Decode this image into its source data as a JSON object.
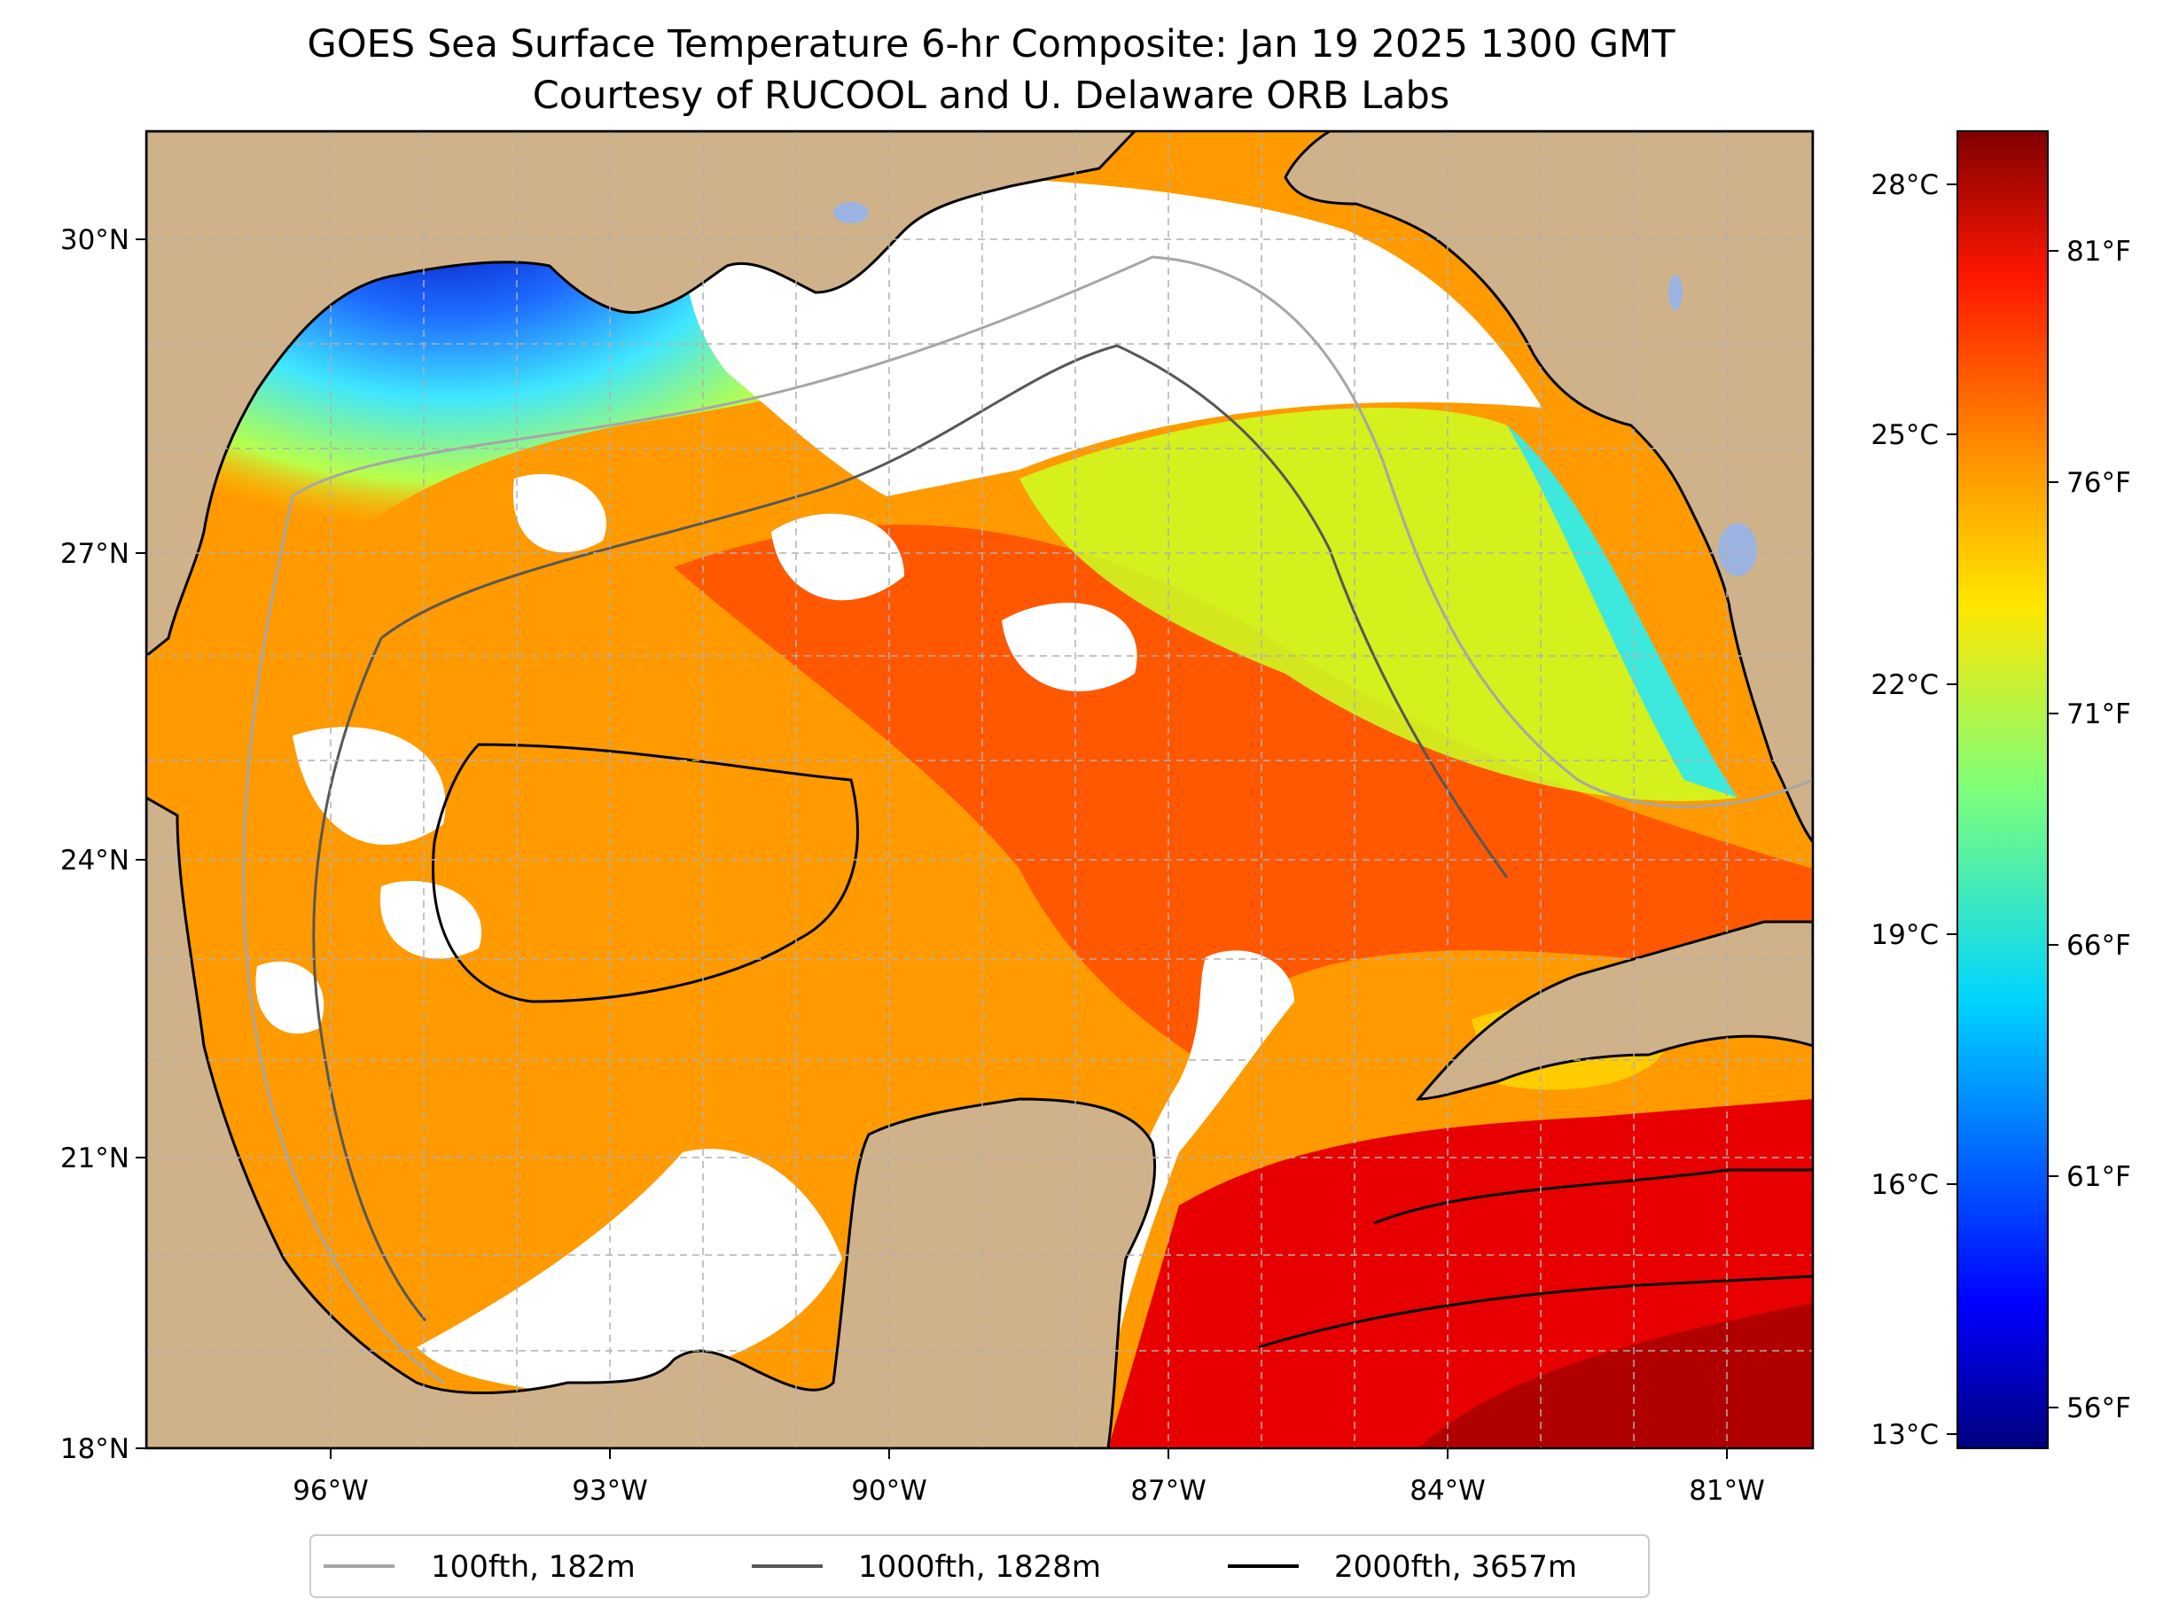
{
  "title": {
    "line1": "GOES Sea Surface Temperature 6-hr Composite: Jan 19 2025 1300 GMT",
    "line2": "Courtesy of RUCOOL and U. Delaware ORB Labs"
  },
  "map": {
    "region": "Gulf of Mexico",
    "lon_range": [
      -98.0,
      -80.0
    ],
    "lat_range": [
      18.0,
      31.0
    ],
    "x_ticks": [
      "96°W",
      "93°W",
      "90°W",
      "87°W",
      "84°W",
      "81°W"
    ],
    "y_ticks": [
      "30°N",
      "27°N",
      "24°N",
      "21°N",
      "18°N"
    ],
    "gridlines": true,
    "colors": {
      "land": "#d0b28a",
      "no_data": "#ffffff",
      "lakes": "#9bb3e0",
      "coastline": "#000000"
    }
  },
  "colorbar": {
    "colormap": "jet",
    "celsius_ticks": [
      "28°C",
      "25°C",
      "22°C",
      "19°C",
      "16°C",
      "13°C"
    ],
    "fahrenheit_ticks": [
      "81°F",
      "76°F",
      "71°F",
      "66°F",
      "61°F",
      "56°F"
    ],
    "range_c": [
      12.9,
      28.8
    ]
  },
  "legend": [
    {
      "label": "100fth, 182m",
      "color": "#a6a6a6"
    },
    {
      "label": "1000fth, 1828m",
      "color": "#575757"
    },
    {
      "label": "2000fth, 3657m",
      "color": "#000000"
    }
  ]
}
